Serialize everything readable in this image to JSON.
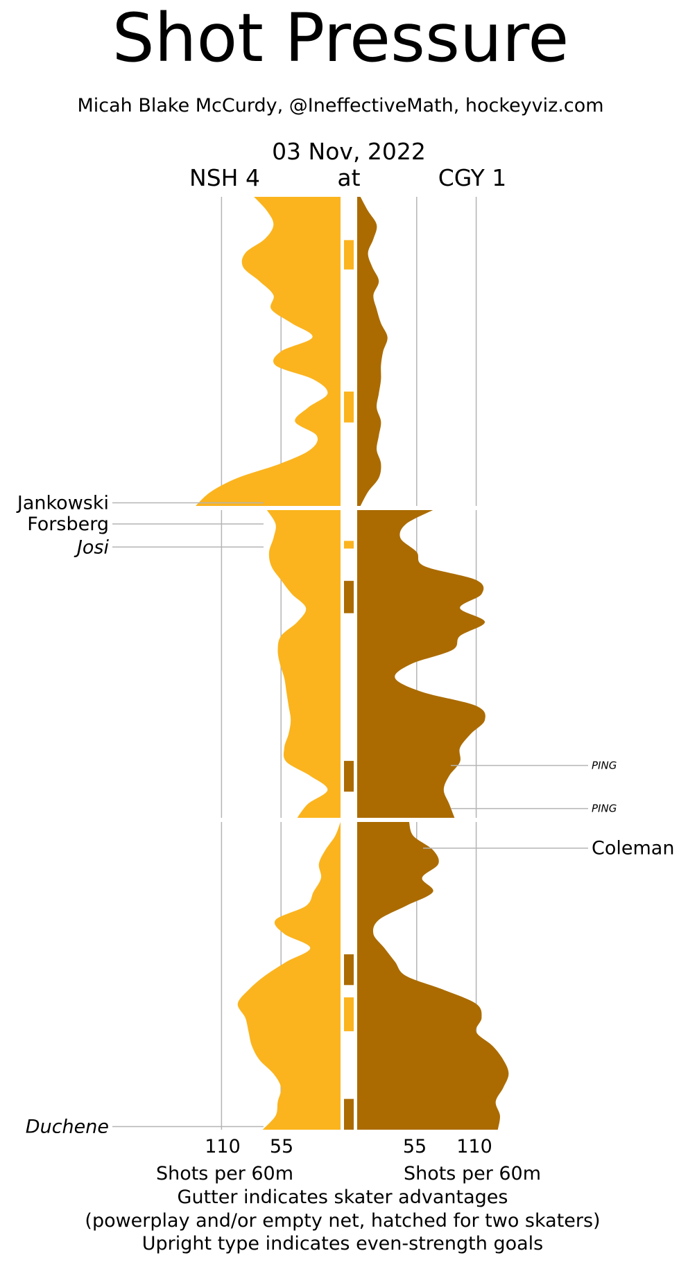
{
  "title": "Shot Pressure",
  "subtitle": "Micah Blake McCurdy, @IneffectiveMath, hockeyviz.com",
  "game": {
    "date": "03 Nov, 2022",
    "away_label": "NSH 4",
    "at_label": "at",
    "home_label": "CGY 1"
  },
  "axis": {
    "left_ticks": [
      "110",
      "55"
    ],
    "right_ticks": [
      "55",
      "110"
    ],
    "left_xlabel": "Shots per 60m",
    "right_xlabel": "Shots per 60m"
  },
  "footnotes": [
    "Gutter indicates skater advantages",
    "(powerplay and/or empty net, hatched for two skaters)",
    "Upright type indicates even-strength goals"
  ],
  "colors": {
    "away": "#fbb41e",
    "home": "#ab6b00",
    "gridline": "#b4b4b4"
  },
  "chart_data": {
    "type": "area",
    "orientation": "vertical-time, mirrored horizontal rate",
    "xunit": "Shots per 60m",
    "xlim": [
      0,
      110
    ],
    "time_unit": "game minutes",
    "periods": [
      {
        "name": "1",
        "start": 0,
        "end": 20
      },
      {
        "name": "2",
        "start": 20,
        "end": 40
      },
      {
        "name": "3",
        "start": 40,
        "end": 60
      }
    ],
    "series": [
      {
        "name": "NSH",
        "side": "left",
        "color": "#fbb41e",
        "points": [
          [
            0,
            80
          ],
          [
            1.4,
            64
          ],
          [
            2.8,
            86
          ],
          [
            4.6,
            92
          ],
          [
            6.3,
            76
          ],
          [
            7.8,
            63
          ],
          [
            10.0,
            38
          ],
          [
            11.4,
            60
          ],
          [
            13.0,
            18
          ],
          [
            14.3,
            10
          ],
          [
            16.9,
            34
          ],
          [
            18.3,
            95
          ],
          [
            19.8,
            137
          ],
          [
            20.0,
            72
          ],
          [
            1.9,
            66
          ],
          [
            2.4,
            65
          ],
          [
            3.9,
            70
          ],
          [
            6.8,
            30
          ],
          [
            8.2,
            55
          ],
          [
            9.4,
            60
          ],
          [
            11.2,
            56
          ],
          [
            12.4,
            48
          ],
          [
            13.8,
            53
          ],
          [
            15.3,
            53
          ],
          [
            17.5,
            8
          ],
          [
            20.0,
            54
          ]
        ]
      },
      {
        "name": "CGY",
        "side": "right",
        "color": "#ab6b00",
        "points": [
          [
            0,
            5
          ],
          [
            1.0,
            22
          ],
          [
            2.4,
            10
          ],
          [
            4.3,
            30
          ],
          [
            6.5,
            32
          ],
          [
            8.3,
            42
          ],
          [
            10.5,
            35
          ],
          [
            12.8,
            35
          ],
          [
            15.1,
            30
          ],
          [
            17.5,
            33
          ],
          [
            19.8,
            5
          ]
        ]
      }
    ],
    "skater_advantages": [
      {
        "team": "NSH",
        "start": 2.8,
        "end": 4.7
      },
      {
        "team": "NSH",
        "start": 12.6,
        "end": 14.6
      },
      {
        "team": "NSH",
        "start": 22.0,
        "end": 22.5
      },
      {
        "team": "CGY",
        "start": 24.6,
        "end": 26.7
      },
      {
        "team": "CGY",
        "start": 36.3,
        "end": 38.3
      },
      {
        "team": "CGY",
        "start": 48.6,
        "end": 50.6
      },
      {
        "team": "NSH",
        "start": 51.4,
        "end": 53.6
      },
      {
        "team": "CGY",
        "start": 58.0,
        "end": 60.0
      }
    ],
    "goals": [
      {
        "team": "NSH",
        "player": "Jankowski",
        "time": 19.8,
        "even_strength": true
      },
      {
        "team": "NSH",
        "player": "Forsberg",
        "time": 20.9,
        "even_strength": true
      },
      {
        "team": "NSH",
        "player": "Josi",
        "time": 22.4,
        "even_strength": false
      },
      {
        "team": "NSH",
        "player": "Duchene",
        "time": 59.8,
        "even_strength": false
      },
      {
        "team": "CGY",
        "player": "Coleman",
        "time": 41.7,
        "even_strength": true
      }
    ],
    "posts": [
      {
        "team": "CGY",
        "label": "PING",
        "time": 36.6
      },
      {
        "team": "CGY",
        "label": "PING",
        "time": 39.4
      }
    ]
  }
}
